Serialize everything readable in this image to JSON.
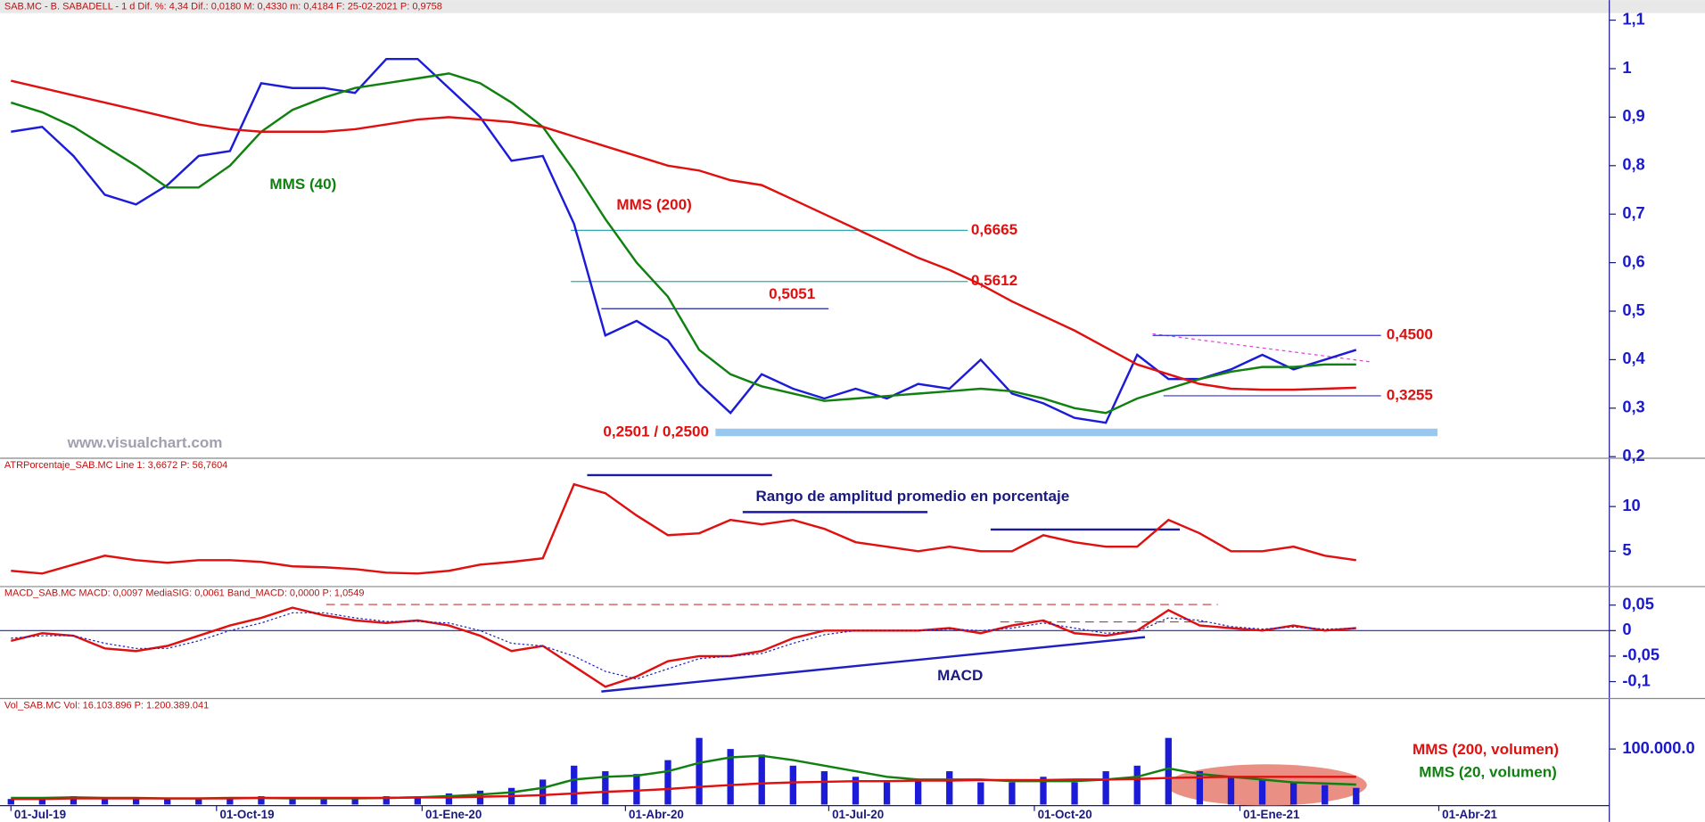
{
  "chart_data": [
    {
      "type": "line",
      "header": "SAB.MC - B. SABADELL -  1 d  Dif. %: 4,34  Dif.: 0,0180  M: 0,4330  m: 0,4184  F: 25-02-2021  P: 0,9758",
      "x": [
        0,
        14,
        28,
        42,
        56,
        70,
        84,
        98,
        112,
        126,
        140,
        154,
        168,
        182,
        196,
        210,
        224,
        238,
        252,
        266,
        280,
        294,
        308,
        322,
        336,
        350,
        364,
        378,
        392,
        406,
        420,
        434,
        448,
        462,
        476,
        490,
        504,
        518,
        532,
        546,
        560,
        574,
        588,
        602
      ],
      "xlim": [
        -4.9,
        715.3
      ],
      "ylim": [
        0.2,
        1.11
      ],
      "yticks": [
        {
          "value": 1.1,
          "label": "1,1"
        },
        1,
        {
          "value": 0.9,
          "label": "0,9"
        },
        {
          "value": 0.8,
          "label": "0,8"
        },
        {
          "value": 0.7,
          "label": "0,7"
        },
        {
          "value": 0.6,
          "label": "0,6"
        },
        {
          "value": 0.5,
          "label": "0,5"
        },
        {
          "value": 0.4,
          "label": "0,4"
        },
        {
          "value": 0.3,
          "label": "0,3"
        },
        {
          "value": 0.2,
          "label": "0,2"
        }
      ],
      "series": [
        {
          "color": "#1c1cd8",
          "values": [
            0.87,
            0.88,
            0.82,
            0.74,
            0.72,
            0.76,
            0.82,
            0.83,
            0.97,
            0.96,
            0.96,
            0.95,
            1.02,
            1.02,
            0.96,
            0.9,
            0.81,
            0.82,
            0.68,
            0.45,
            0.48,
            0.44,
            0.35,
            0.29,
            0.37,
            0.34,
            0.32,
            0.34,
            0.32,
            0.35,
            0.34,
            0.4,
            0.33,
            0.31,
            0.28,
            0.27,
            0.41,
            0.36,
            0.36,
            0.38,
            0.41,
            0.38,
            0.4,
            0.42
          ]
        },
        {
          "name": "MMS (40)",
          "color": "#108010",
          "values": [
            0.93,
            0.91,
            0.88,
            0.84,
            0.8,
            0.755,
            0.755,
            0.8,
            0.87,
            0.915,
            0.94,
            0.96,
            0.97,
            0.98,
            0.99,
            0.97,
            0.93,
            0.88,
            0.79,
            0.69,
            0.6,
            0.53,
            0.42,
            0.37,
            0.345,
            0.33,
            0.315,
            0.32,
            0.325,
            0.33,
            0.335,
            0.34,
            0.335,
            0.32,
            0.3,
            0.29,
            0.32,
            0.34,
            0.36,
            0.375,
            0.385,
            0.385,
            0.39,
            0.39
          ]
        },
        {
          "name": "MMS (200)",
          "color": "#e01010",
          "values": [
            0.975,
            0.96,
            0.945,
            0.93,
            0.915,
            0.9,
            0.885,
            0.875,
            0.87,
            0.87,
            0.87,
            0.875,
            0.885,
            0.895,
            0.9,
            0.895,
            0.89,
            0.88,
            0.86,
            0.84,
            0.82,
            0.8,
            0.79,
            0.77,
            0.76,
            0.73,
            0.7,
            0.67,
            0.64,
            0.61,
            0.585,
            0.555,
            0.52,
            0.49,
            0.46,
            0.425,
            0.39,
            0.37,
            0.35,
            0.34,
            0.338,
            0.338,
            0.34,
            0.342
          ]
        }
      ],
      "levels": [
        {
          "value": 0.6665,
          "label": "0,6665",
          "color": "#30a8b0"
        },
        {
          "value": 0.5612,
          "label": "0,5612",
          "color": "#30a8b0"
        },
        {
          "value": 0.5051,
          "label": "0,5051",
          "color": "#2020a0"
        },
        {
          "value": 0.45,
          "label": "0,4500",
          "color": "#3030d0"
        },
        {
          "value": 0.3255,
          "label": "0,3255",
          "color": "#3030d0"
        },
        {
          "value": 0.2501,
          "label": "0,2501 / 0,2500",
          "color": "#98c8f0"
        }
      ],
      "annotations": [
        "www.visualchart.com"
      ]
    },
    {
      "type": "line",
      "header": "ATRPorcentaje_SAB.MC  Line 1: 3,6672  P: 56,7604",
      "ylim": [
        1.22,
        15.1
      ],
      "yticks": [
        10,
        5
      ],
      "series": [
        {
          "color": "#e01010",
          "values": [
            2.8,
            2.5,
            3.5,
            4.5,
            4.0,
            3.7,
            4.0,
            4.0,
            3.8,
            3.3,
            3.2,
            3.0,
            2.6,
            2.5,
            2.8,
            3.5,
            3.8,
            4.2,
            12.5,
            11.5,
            9.0,
            6.8,
            7.0,
            8.5,
            8.0,
            8.5,
            7.5,
            6.0,
            5.5,
            5.0,
            5.5,
            5.0,
            5.0,
            6.8,
            6.0,
            5.5,
            5.5,
            8.5,
            7.0,
            5.0,
            5.0,
            5.5,
            4.5,
            4.0
          ]
        }
      ],
      "annotations": [
        "Rango de amplitud promedio en porcentaje"
      ]
    },
    {
      "type": "line",
      "header": "MACD_SAB.MC  MACD: 0,0097  MediaSIG: 0,0061  Band_MACD: 0,0000  P: 1,0549",
      "ylim": [
        -0.13,
        0.081
      ],
      "yticks": [
        {
          "value": 0.05,
          "label": "0,05"
        },
        0,
        {
          "value": -0.05,
          "label": "-0,05"
        },
        {
          "value": -0.1,
          "label": "-0,1"
        }
      ],
      "series": [
        {
          "color": "#e01010",
          "values": [
            -0.02,
            -0.005,
            -0.01,
            -0.035,
            -0.04,
            -0.03,
            -0.01,
            0.01,
            0.025,
            0.045,
            0.03,
            0.02,
            0.015,
            0.02,
            0.01,
            -0.01,
            -0.04,
            -0.03,
            -0.07,
            -0.11,
            -0.09,
            -0.06,
            -0.05,
            -0.05,
            -0.04,
            -0.015,
            0.0,
            0.0,
            0.0,
            0.0,
            0.005,
            -0.005,
            0.01,
            0.02,
            -0.005,
            -0.01,
            0.0,
            0.04,
            0.01,
            0.005,
            0.0,
            0.01,
            0.0,
            0.005
          ]
        },
        {
          "color": "#2020c0",
          "dash": true,
          "values": [
            -0.015,
            -0.01,
            -0.01,
            -0.025,
            -0.035,
            -0.035,
            -0.02,
            0.0,
            0.015,
            0.035,
            0.035,
            0.025,
            0.018,
            0.018,
            0.015,
            0.0,
            -0.025,
            -0.03,
            -0.05,
            -0.08,
            -0.095,
            -0.075,
            -0.055,
            -0.05,
            -0.045,
            -0.025,
            -0.008,
            0,
            0,
            0,
            0.003,
            0,
            0.005,
            0.015,
            0.005,
            -0.005,
            -0.002,
            0.025,
            0.02,
            0.008,
            0.003,
            0.007,
            0.003,
            0.004
          ]
        }
      ],
      "annotations": [
        "MACD"
      ]
    },
    {
      "type": "bar",
      "header": "Vol_SAB.MC  Vol: 16.103.896  P: 1.200.389.041",
      "ylim": [
        0,
        186000000
      ],
      "yticks": [
        {
          "value": 100000000,
          "label": "100.000.0"
        }
      ],
      "xticks": [
        {
          "value": 0,
          "label": "01-Jul-19"
        },
        {
          "value": 92,
          "label": "01-Oct-19"
        },
        {
          "value": 184,
          "label": "01-Ene-20"
        },
        {
          "value": 275,
          "label": "01-Abr-20"
        },
        {
          "value": 366,
          "label": "01-Jul-20"
        },
        {
          "value": 458,
          "label": "01-Oct-20"
        },
        {
          "value": 550,
          "label": "01-Ene-21"
        },
        {
          "value": 639,
          "label": "01-Abr-21"
        }
      ],
      "series": [
        {
          "type": "bar",
          "color": "#1c1cd8",
          "values": [
            10000000,
            12000000,
            15000000,
            10000000,
            12000000,
            10000000,
            10000000,
            12000000,
            15000000,
            10000000,
            12000000,
            10000000,
            15000000,
            12000000,
            20000000,
            25000000,
            30000000,
            45000000,
            70000000,
            60000000,
            55000000,
            80000000,
            120000000,
            100000000,
            90000000,
            70000000,
            60000000,
            50000000,
            40000000,
            45000000,
            60000000,
            40000000,
            40000000,
            50000000,
            40000000,
            60000000,
            70000000,
            120000000,
            60000000,
            50000000,
            45000000,
            40000000,
            35000000,
            30000000
          ]
        },
        {
          "name": "MMS (20, volumen)",
          "color": "#108010",
          "values": [
            12000000,
            12000000,
            13000000,
            12000000,
            12000000,
            11000000,
            11000000,
            12000000,
            12000000,
            11000000,
            11000000,
            11000000,
            12000000,
            13000000,
            15000000,
            18000000,
            22000000,
            30000000,
            45000000,
            50000000,
            52000000,
            60000000,
            75000000,
            85000000,
            88000000,
            80000000,
            70000000,
            60000000,
            50000000,
            45000000,
            45000000,
            45000000,
            42000000,
            42000000,
            42000000,
            45000000,
            50000000,
            65000000,
            55000000,
            50000000,
            45000000,
            40000000,
            38000000,
            36000000
          ]
        },
        {
          "name": "MMS (200, volumen)",
          "color": "#e01010",
          "values": [
            10000000,
            10000000,
            11000000,
            11000000,
            11000000,
            11000000,
            11000000,
            11000000,
            12000000,
            12000000,
            12000000,
            12000000,
            12000000,
            13000000,
            13000000,
            14000000,
            15000000,
            17000000,
            20000000,
            23000000,
            25000000,
            28000000,
            32000000,
            35000000,
            38000000,
            40000000,
            41000000,
            42000000,
            42000000,
            43000000,
            43000000,
            44000000,
            44000000,
            44000000,
            45000000,
            45000000,
            46000000,
            48000000,
            49000000,
            50000000,
            50000000,
            50000000,
            50000000,
            50000000
          ]
        }
      ]
    }
  ]
}
